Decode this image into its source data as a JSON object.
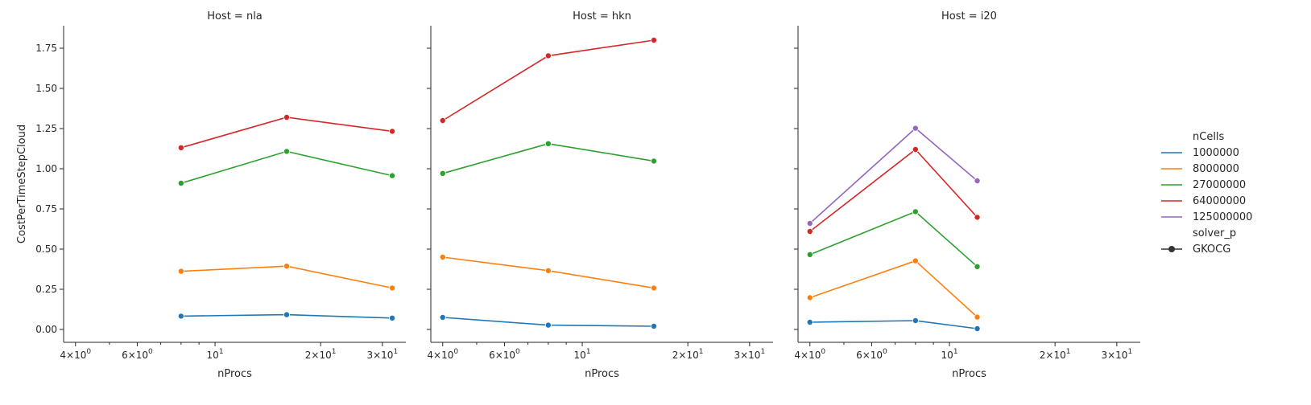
{
  "chart_data": {
    "type": "line",
    "x_scale": "log",
    "shared_y": true,
    "xlabel": "nProcs",
    "ylabel": "CostPerTimeStepCloud",
    "ylim": [
      -0.08,
      1.89
    ],
    "xlim": [
      3.7,
      35
    ],
    "y_ticks": [
      {
        "value": 0.0,
        "label": "0.00"
      },
      {
        "value": 0.25,
        "label": "0.25"
      },
      {
        "value": 0.5,
        "label": "0.50"
      },
      {
        "value": 0.75,
        "label": "0.75"
      },
      {
        "value": 1.0,
        "label": "1.00"
      },
      {
        "value": 1.25,
        "label": "1.25"
      },
      {
        "value": 1.5,
        "label": "1.50"
      },
      {
        "value": 1.75,
        "label": "1.75"
      }
    ],
    "x_ticks_major": [
      {
        "value": 4,
        "base": "4",
        "exp": "0"
      },
      {
        "value": 6,
        "base": "6",
        "exp": "0"
      },
      {
        "value": 10,
        "base": "10",
        "exp": "1"
      },
      {
        "value": 20,
        "base": "2",
        "exp": "1"
      },
      {
        "value": 30,
        "base": "3",
        "exp": "1"
      }
    ],
    "x_tick_times": "×",
    "x_ticks_minor": [
      5,
      7,
      8,
      9
    ],
    "panels": [
      {
        "title": "Host = nla",
        "series": [
          {
            "ncells": "1000000",
            "x": [
              8,
              16,
              32
            ],
            "y": [
              0.083,
              0.092,
              0.071
            ]
          },
          {
            "ncells": "8000000",
            "x": [
              8,
              16,
              32
            ],
            "y": [
              0.362,
              0.394,
              0.258
            ]
          },
          {
            "ncells": "27000000",
            "x": [
              8,
              16,
              32
            ],
            "y": [
              0.91,
              1.108,
              0.957
            ]
          },
          {
            "ncells": "64000000",
            "x": [
              8,
              16,
              32
            ],
            "y": [
              1.131,
              1.32,
              1.233
            ]
          }
        ]
      },
      {
        "title": "Host = hkn",
        "series": [
          {
            "ncells": "1000000",
            "x": [
              4,
              8,
              16
            ],
            "y": [
              0.075,
              0.027,
              0.02
            ]
          },
          {
            "ncells": "8000000",
            "x": [
              4,
              8,
              16
            ],
            "y": [
              0.45,
              0.366,
              0.258
            ]
          },
          {
            "ncells": "27000000",
            "x": [
              4,
              8,
              16
            ],
            "y": [
              0.971,
              1.156,
              1.048
            ]
          },
          {
            "ncells": "64000000",
            "x": [
              4,
              8,
              16
            ],
            "y": [
              1.3,
              1.703,
              1.8
            ]
          }
        ]
      },
      {
        "title": "Host = i20",
        "series": [
          {
            "ncells": "1000000",
            "x": [
              4,
              8,
              12
            ],
            "y": [
              0.045,
              0.055,
              0.005
            ]
          },
          {
            "ncells": "8000000",
            "x": [
              4,
              8,
              12
            ],
            "y": [
              0.198,
              0.427,
              0.077
            ]
          },
          {
            "ncells": "27000000",
            "x": [
              4,
              8,
              12
            ],
            "y": [
              0.466,
              0.733,
              0.391
            ]
          },
          {
            "ncells": "64000000",
            "x": [
              4,
              8,
              12
            ],
            "y": [
              0.61,
              1.12,
              0.698
            ]
          },
          {
            "ncells": "125000000",
            "x": [
              4,
              8,
              12
            ],
            "y": [
              0.66,
              1.252,
              0.925
            ]
          }
        ]
      }
    ],
    "legend": {
      "placement": "right",
      "hue_title": "nCells",
      "hue_entries": [
        {
          "label": "1000000",
          "color": "#1f77b4"
        },
        {
          "label": "8000000",
          "color": "#ff7f0e"
        },
        {
          "label": "27000000",
          "color": "#2ca02c"
        },
        {
          "label": "64000000",
          "color": "#d62728"
        },
        {
          "label": "125000000",
          "color": "#9467bd"
        }
      ],
      "style_title": "solver_p",
      "style_entries": [
        {
          "label": "GKOCG",
          "color": "#333333"
        }
      ]
    },
    "grid": false
  }
}
